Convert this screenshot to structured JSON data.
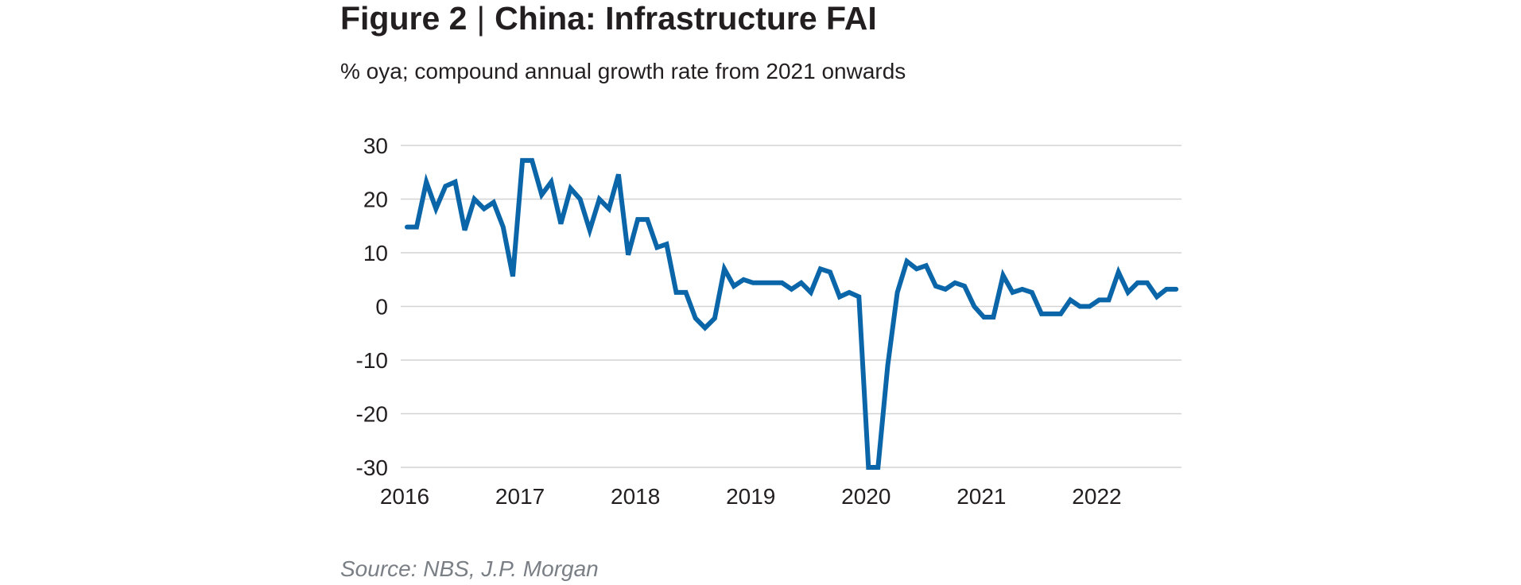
{
  "figure_label": "Figure 2",
  "separator": "|",
  "title": "China: Infrastructure FAI",
  "subtitle": "% oya; compound annual growth rate from 2021 onwards",
  "source": "Source: NBS, J.P. Morgan",
  "colors": {
    "line": "#0a66a8",
    "grid": "#d3d3d3",
    "text": "#231f20"
  },
  "chart_data": {
    "type": "line",
    "title": "China: Infrastructure FAI",
    "subtitle": "% oya; compound annual growth rate from 2021 onwards",
    "xlabel": "",
    "ylabel": "",
    "ylim": [
      -30,
      30
    ],
    "yticks": [
      "30",
      "20",
      "10",
      "0",
      "-10",
      "-20",
      "-30"
    ],
    "xlim": [
      2016,
      2022.7
    ],
    "xticks": [
      "2016",
      "2017",
      "2018",
      "2019",
      "2020",
      "2021",
      "2022"
    ],
    "grid": true,
    "legend": "none",
    "series": [
      {
        "x": [
          2016.0,
          2016.083,
          2016.167,
          2016.25,
          2016.333,
          2016.417,
          2016.5,
          2016.583,
          2016.667,
          2016.75,
          2016.833,
          2016.917,
          2017.0,
          2017.083,
          2017.167,
          2017.25,
          2017.333,
          2017.417,
          2017.5,
          2017.583,
          2017.667,
          2017.75,
          2017.833,
          2017.917,
          2018.0,
          2018.083,
          2018.167,
          2018.25,
          2018.333,
          2018.417,
          2018.5,
          2018.583,
          2018.667,
          2018.75,
          2018.833,
          2018.917,
          2019.0,
          2019.083,
          2019.167,
          2019.25,
          2019.333,
          2019.417,
          2019.5,
          2019.583,
          2019.667,
          2019.75,
          2019.833,
          2019.917,
          2020.0,
          2020.083,
          2020.167,
          2020.25,
          2020.333,
          2020.417,
          2020.5,
          2020.583,
          2020.667,
          2020.75,
          2020.833,
          2020.917,
          2021.0,
          2021.083,
          2021.167,
          2021.25,
          2021.333,
          2021.417,
          2021.5,
          2021.583,
          2021.667,
          2021.75,
          2021.833,
          2021.917,
          2022.0,
          2022.083,
          2022.167,
          2022.25,
          2022.333,
          2022.417,
          2022.5,
          2022.583,
          2022.667
        ],
        "values": [
          14.8,
          14.8,
          23.2,
          18.2,
          22.4,
          23.2,
          14.2,
          20.0,
          18.2,
          19.4,
          14.8,
          5.6,
          27.2,
          27.2,
          20.8,
          23.2,
          15.4,
          22.0,
          20.0,
          14.2,
          20.0,
          18.2,
          24.6,
          9.6,
          16.2,
          16.2,
          11.0,
          11.6,
          2.6,
          2.6,
          -2.2,
          -4.0,
          -2.2,
          7.0,
          3.8,
          5.0,
          4.4,
          4.4,
          4.4,
          4.4,
          3.2,
          4.4,
          2.6,
          7.0,
          6.4,
          1.8,
          2.6,
          1.8,
          -30.0,
          -30.0,
          -11.0,
          2.6,
          8.4,
          7.0,
          7.6,
          3.8,
          3.2,
          4.4,
          3.8,
          0.0,
          -2.0,
          -2.0,
          5.8,
          2.6,
          3.2,
          2.6,
          -1.4,
          -1.4,
          -1.4,
          1.2,
          0.0,
          0.0,
          1.2,
          1.2,
          6.4,
          2.6,
          4.4,
          4.4,
          1.8,
          3.2,
          3.2
        ]
      }
    ]
  }
}
